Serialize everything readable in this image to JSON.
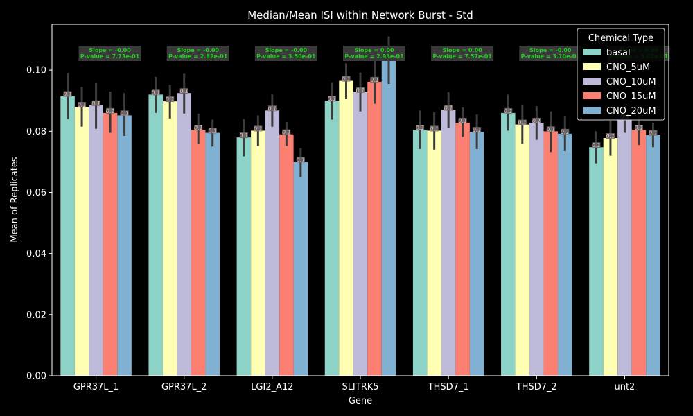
{
  "chart_data": {
    "type": "bar",
    "title": "Median/Mean ISI within Network Burst - Std",
    "xlabel": "Gene",
    "ylabel": "Mean of Replicates",
    "ylim": [
      0,
      0.115
    ],
    "yticks": [
      "0.00",
      "0.02",
      "0.04",
      "0.06",
      "0.08",
      "0.10"
    ],
    "categories": [
      "GPR37L_1",
      "GPR37L_2",
      "LGI2_A12",
      "SLITRK5",
      "THSD7_1",
      "THSD7_2",
      "unt2"
    ],
    "legend": {
      "title": "Chemical Type",
      "placement": "top-right"
    },
    "series": [
      {
        "name": "basal",
        "color": "#8dd3c7",
        "values": [
          0.0915,
          0.092,
          0.078,
          0.09,
          0.0805,
          0.086,
          0.0748
        ],
        "err_low": [
          0.084,
          0.086,
          0.0718,
          0.0838,
          0.0742,
          0.0802,
          0.0695
        ],
        "err_high": [
          0.099,
          0.0978,
          0.084,
          0.096,
          0.0868,
          0.092,
          0.08
        ],
        "labels": [
          "0.1",
          "0.1",
          "0.1",
          "0.1",
          "0.1",
          "0.1",
          "0.1"
        ]
      },
      {
        "name": "CNO_5uM",
        "color": "#ffffb3",
        "values": [
          0.088,
          0.0898,
          0.0802,
          0.0965,
          0.0802,
          0.0822,
          0.0778
        ],
        "err_low": [
          0.0815,
          0.0842,
          0.0752,
          0.0905,
          0.074,
          0.076,
          0.072
        ],
        "err_high": [
          0.0945,
          0.0952,
          0.0852,
          0.1022,
          0.0862,
          0.0885,
          0.0835
        ],
        "labels": [
          "0.1",
          "0.1",
          "0.1",
          "0.1",
          "0.1",
          "0.1",
          "0.1"
        ]
      },
      {
        "name": "CNO_10uM",
        "color": "#bebada",
        "values": [
          0.0885,
          0.0925,
          0.0868,
          0.0928,
          0.087,
          0.0828,
          0.084
        ],
        "err_low": [
          0.0808,
          0.0858,
          0.0815,
          0.0865,
          0.0812,
          0.0772,
          0.0795
        ],
        "err_high": [
          0.0958,
          0.0988,
          0.092,
          0.0992,
          0.0928,
          0.0882,
          0.089
        ],
        "labels": [
          "0.1",
          "0.1",
          "0.1",
          "0.1",
          "0.1",
          "0.1",
          "0.1"
        ]
      },
      {
        "name": "CNO_15uM",
        "color": "#fb8072",
        "values": [
          0.086,
          0.0805,
          0.079,
          0.0962,
          0.0828,
          0.08,
          0.0805
        ],
        "err_low": [
          0.0795,
          0.0758,
          0.0752,
          0.089,
          0.0782,
          0.0732,
          0.0755
        ],
        "err_high": [
          0.093,
          0.0858,
          0.083,
          0.104,
          0.0878,
          0.0865,
          0.085
        ],
        "labels": [
          "0.1",
          "0.1",
          "0.1",
          "0.1",
          "0.1",
          "0.1",
          "0.1"
        ]
      },
      {
        "name": "CNO_20uM",
        "color": "#80b1d3",
        "values": [
          0.0852,
          0.0795,
          0.07,
          0.1032,
          0.0798,
          0.0792,
          0.0788
        ],
        "err_low": [
          0.0785,
          0.075,
          0.065,
          0.0955,
          0.0742,
          0.0735,
          0.0748
        ],
        "err_high": [
          0.0925,
          0.0838,
          0.0745,
          0.111,
          0.0855,
          0.0848,
          0.0828
        ],
        "labels": [
          "0.1",
          "0.1",
          "0.1",
          "0.1",
          "0.1",
          "0.1",
          "0.1"
        ]
      }
    ],
    "annotations": [
      {
        "category": "GPR37L_1",
        "line1": "Slope = -0.00",
        "line2": "P-value = 7.73e-01"
      },
      {
        "category": "GPR37L_2",
        "line1": "Slope = -0.00",
        "line2": "P-value = 2.82e-01"
      },
      {
        "category": "LGI2_A12",
        "line1": "Slope = -0.00",
        "line2": "P-value = 3.50e-01"
      },
      {
        "category": "SLITRK5",
        "line1": "Slope = 0.00",
        "line2": "P-value = 2.93e-01"
      },
      {
        "category": "THSD7_1",
        "line1": "Slope = 0.00",
        "line2": "P-value = 7.57e-01"
      },
      {
        "category": "THSD7_2",
        "line1": "Slope = -0.00",
        "line2": "P-value = 3.10e-01"
      },
      {
        "category": "unt2",
        "line1": "Slope = 0.00",
        "line2": "P-value = 5.02e-01"
      }
    ]
  }
}
